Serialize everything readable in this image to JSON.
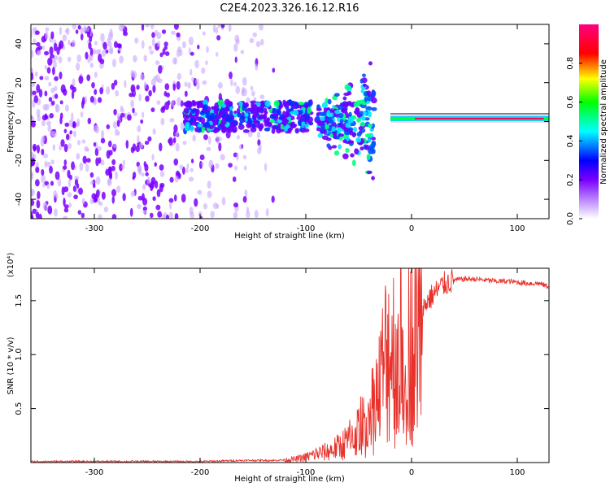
{
  "title": "C2E4.2023.326.16.12.R16",
  "colors": {
    "snr_line": "#e8312b",
    "strong_band": "#ff0060",
    "point_dark": "#7a00ff",
    "point_light": "#c9a6ff",
    "background": "#ffffff"
  },
  "chart_data": [
    {
      "type": "heatmap",
      "title": "C2E4.2023.326.16.12.R16",
      "xlabel": "Height of straight line (km)",
      "ylabel": "Frequency (Hz)",
      "xlim": [
        -360,
        130
      ],
      "ylim": [
        -50,
        50
      ],
      "x_ticks": [
        -300,
        -200,
        -100,
        0,
        100
      ],
      "y_ticks": [
        -40,
        -20,
        0,
        20,
        40
      ],
      "colorbar": {
        "label": "Normalized spectral amplitude",
        "range": [
          0.0,
          1.0
        ],
        "ticks": [
          0.0,
          0.2,
          0.4,
          0.6,
          0.8
        ],
        "colormap": [
          "#ffffff",
          "#b400ff",
          "#0000ff",
          "#00ffff",
          "#00ff00",
          "#ffff00",
          "#ff0000",
          "#ff0080"
        ]
      },
      "features": [
        {
          "x_range": [
            -360,
            -130
          ],
          "freq_range": [
            -50,
            50
          ],
          "amplitude": 0.1
        },
        {
          "x_range": [
            -215,
            -95
          ],
          "freq_range": [
            -5,
            10
          ],
          "amplitude": 0.35
        },
        {
          "x_range": [
            -90,
            -35
          ],
          "freq_range": [
            -15,
            15
          ],
          "amplitude": 0.45
        },
        {
          "x_range": [
            -20,
            125
          ],
          "freq_center": 1.5,
          "amplitude": 0.95
        }
      ]
    },
    {
      "type": "line",
      "xlabel": "Height of straight line (km)",
      "ylabel": "SNR (10 * v/v)",
      "y_multiplier": "(x10⁴)",
      "xlim": [
        -360,
        130
      ],
      "ylim": [
        0,
        1.8
      ],
      "x_ticks": [
        -300,
        -200,
        -100,
        0,
        100
      ],
      "y_ticks": [
        0.5,
        1.0,
        1.5
      ],
      "y_tick_labels": [
        "0.5",
        "1.0",
        "1.5"
      ],
      "series": [
        {
          "x": [
            -360,
            -300,
            -250,
            -200,
            -160,
            -130,
            -110,
            -100,
            -90,
            -80,
            -70,
            -60,
            -50,
            -40,
            -35,
            -30,
            -25,
            -20,
            -15,
            -10,
            -5,
            0,
            5,
            10,
            15,
            20,
            25,
            30,
            40,
            50,
            60,
            70,
            80,
            90,
            100,
            110,
            120,
            130
          ],
          "y": [
            0.01,
            0.01,
            0.01,
            0.01,
            0.02,
            0.02,
            0.03,
            0.05,
            0.08,
            0.1,
            0.14,
            0.2,
            0.3,
            0.45,
            0.55,
            0.7,
            0.95,
            1.1,
            1.0,
            1.05,
            1.15,
            1.25,
            1.3,
            1.4,
            1.5,
            1.55,
            1.6,
            1.65,
            1.69,
            1.7,
            1.7,
            1.69,
            1.68,
            1.68,
            1.67,
            1.66,
            1.66,
            1.63
          ]
        }
      ]
    }
  ]
}
